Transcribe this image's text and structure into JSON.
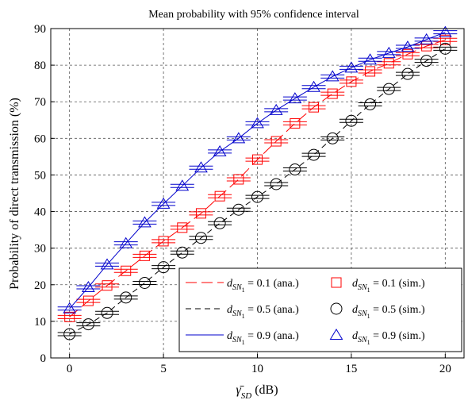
{
  "chart_data": {
    "type": "line",
    "title": "Mean probability with 95% confidence interval",
    "xlabel": "γ̄_SD (dB)",
    "ylabel": "Probability of direct transmission (%)",
    "xlim": [
      -1,
      21
    ],
    "ylim": [
      0,
      90
    ],
    "xticks": [
      0,
      5,
      10,
      15,
      20
    ],
    "yticks": [
      0,
      10,
      20,
      30,
      40,
      50,
      60,
      70,
      80,
      90
    ],
    "grid": true,
    "legend_position": "bottom-right",
    "x": [
      0,
      1,
      2,
      3,
      4,
      5,
      6,
      7,
      8,
      9,
      10,
      11,
      12,
      13,
      14,
      15,
      16,
      17,
      18,
      19,
      20
    ],
    "series": [
      {
        "name": "0.1",
        "color": "#ff0000",
        "marker": "square",
        "ana_label": "d_SN1 = 0.1 (ana.)",
        "sim_label": "d_SN1 = 0.1 (sim.)",
        "ana": [
          11.2,
          15.6,
          19.8,
          23.8,
          27.9,
          31.9,
          35.6,
          39.5,
          44.2,
          48.8,
          54.2,
          59.2,
          64.1,
          68.5,
          72.2,
          75.5,
          78.3,
          80.5,
          83.0,
          85.2,
          86.9
        ],
        "sim": [
          11.2,
          15.6,
          19.8,
          23.8,
          27.9,
          31.9,
          35.6,
          39.5,
          44.2,
          48.8,
          54.2,
          59.2,
          64.1,
          68.5,
          72.2,
          75.5,
          78.3,
          80.5,
          83.0,
          85.2,
          86.9
        ]
      },
      {
        "name": "0.5",
        "color": "#000000",
        "marker": "circle",
        "ana_label": "d_SN1 = 0.5 (ana.)",
        "sim_label": "d_SN1 = 0.5 (sim.)",
        "ana": [
          6.5,
          9.2,
          12.3,
          16.5,
          20.5,
          24.8,
          28.8,
          32.8,
          36.8,
          40.5,
          44.0,
          47.5,
          51.5,
          55.5,
          60.0,
          64.8,
          69.3,
          73.5,
          77.6,
          81.2,
          84.5
        ],
        "sim": [
          6.5,
          9.2,
          12.3,
          16.5,
          20.5,
          24.8,
          28.8,
          32.8,
          36.8,
          40.5,
          44.0,
          47.5,
          51.5,
          55.5,
          60.0,
          64.8,
          69.3,
          73.5,
          77.6,
          81.2,
          84.5
        ]
      },
      {
        "name": "0.9",
        "color": "#0000cc",
        "marker": "triangle",
        "ana_label": "d_SN1 = 0.9 (ana.)",
        "sim_label": "d_SN1 = 0.9 (sim.)",
        "ana": [
          13.5,
          19.3,
          25.5,
          31.3,
          37.0,
          42.1,
          47.0,
          52.0,
          56.4,
          60.0,
          64.1,
          67.7,
          70.9,
          74.0,
          76.9,
          79.3,
          81.5,
          83.3,
          85.0,
          87.0,
          89.0
        ],
        "sim": [
          13.5,
          19.3,
          25.5,
          31.3,
          37.0,
          42.1,
          47.0,
          52.0,
          56.4,
          60.0,
          64.1,
          67.7,
          70.9,
          74.0,
          76.9,
          79.3,
          81.5,
          83.3,
          85.0,
          87.0,
          89.0
        ]
      }
    ]
  }
}
